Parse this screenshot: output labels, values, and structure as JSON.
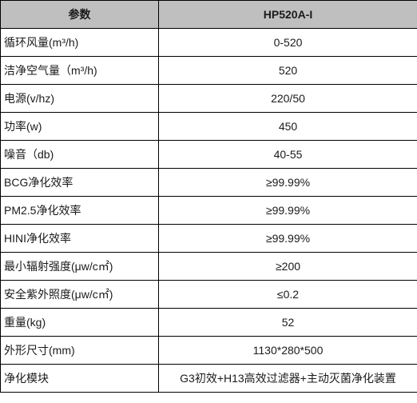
{
  "table": {
    "headers": [
      "参数",
      "HP520A-I"
    ],
    "rows": [
      [
        "循环风量(m³/h)",
        "0-520"
      ],
      [
        "洁净空气量（m³/h)",
        "520"
      ],
      [
        "电源(v/hz)",
        "220/50"
      ],
      [
        "功率(w)",
        "450"
      ],
      [
        "噪音（db)",
        "40-55"
      ],
      [
        "BCG净化效率",
        "≥99.99%"
      ],
      [
        "PM2.5净化效率",
        "≥99.99%"
      ],
      [
        "HINI净化效率",
        "≥99.99%"
      ],
      [
        "最小辐射强度(μw/c㎡)",
        "≥200"
      ],
      [
        "安全紫外照度(μw/c㎡)",
        "≤0.2"
      ],
      [
        "重量(kg)",
        "52"
      ],
      [
        "外形尺寸(mm)",
        "1130*280*500"
      ],
      [
        "净化模块",
        "G3初效+H13高效过滤器+主动灭菌净化装置"
      ]
    ]
  }
}
